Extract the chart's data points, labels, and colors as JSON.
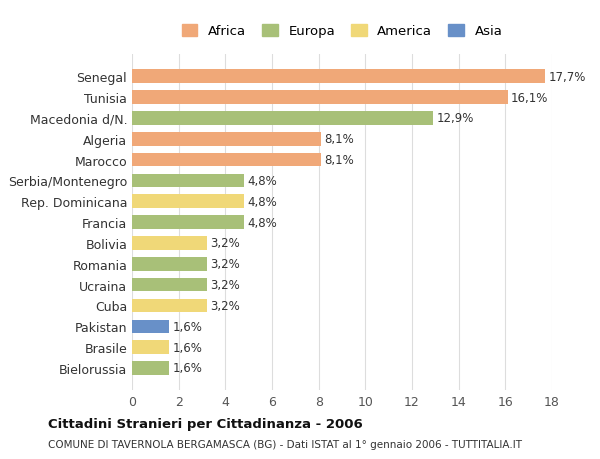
{
  "countries": [
    "Senegal",
    "Tunisia",
    "Macedonia d/N.",
    "Algeria",
    "Marocco",
    "Serbia/Montenegro",
    "Rep. Dominicana",
    "Francia",
    "Bolivia",
    "Romania",
    "Ucraina",
    "Cuba",
    "Pakistan",
    "Brasile",
    "Bielorussia"
  ],
  "values": [
    17.7,
    16.1,
    12.9,
    8.1,
    8.1,
    4.8,
    4.8,
    4.8,
    3.2,
    3.2,
    3.2,
    3.2,
    1.6,
    1.6,
    1.6
  ],
  "labels": [
    "17,7%",
    "16,1%",
    "12,9%",
    "8,1%",
    "8,1%",
    "4,8%",
    "4,8%",
    "4,8%",
    "3,2%",
    "3,2%",
    "3,2%",
    "3,2%",
    "1,6%",
    "1,6%",
    "1,6%"
  ],
  "continents": [
    "Africa",
    "Africa",
    "Europa",
    "Africa",
    "Africa",
    "Europa",
    "America",
    "Europa",
    "America",
    "Europa",
    "Europa",
    "America",
    "Asia",
    "America",
    "Europa"
  ],
  "colors": {
    "Africa": "#F0A878",
    "Europa": "#A8C078",
    "America": "#F0D878",
    "Asia": "#6890C8"
  },
  "legend_order": [
    "Africa",
    "Europa",
    "America",
    "Asia"
  ],
  "xlim": [
    0,
    18
  ],
  "xticks": [
    0,
    2,
    4,
    6,
    8,
    10,
    12,
    14,
    16,
    18
  ],
  "title": "Cittadini Stranieri per Cittadinanza - 2006",
  "subtitle": "COMUNE DI TAVERNOLA BERGAMASCA (BG) - Dati ISTAT al 1° gennaio 2006 - TUTTITALIA.IT",
  "bg_color": "#ffffff",
  "grid_color": "#dddddd",
  "label_fontsize": 8.5,
  "bar_height": 0.65
}
